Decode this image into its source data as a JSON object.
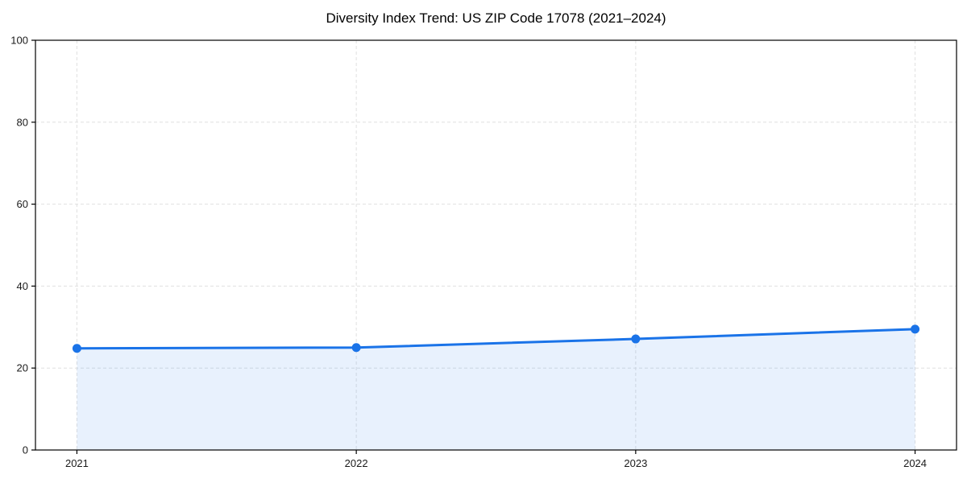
{
  "figure": {
    "background": "#ffffff",
    "plot_border_color": "#000000",
    "grid_color": "#e0e0e0"
  },
  "chart_data": {
    "type": "line",
    "title": "Diversity Index Trend: US ZIP Code 17078 (2021–2024)",
    "xlabel": "",
    "ylabel": "",
    "categories": [
      "2021",
      "2022",
      "2023",
      "2024"
    ],
    "series": [
      {
        "name": "Diversity Index",
        "values": [
          24.8,
          25.0,
          27.1,
          29.5
        ],
        "line_color": "#1a73e8",
        "fill_color": "rgba(26,115,232,0.10)",
        "marker": "circle",
        "area_fill": true
      }
    ],
    "ylim": [
      0,
      100
    ],
    "yticks": [
      0,
      20,
      40,
      60,
      80,
      100
    ],
    "xtick_labels": [
      "2021",
      "2022",
      "2023",
      "2024"
    ],
    "grid": true,
    "grid_style": "dashed",
    "legend_position": "none"
  }
}
